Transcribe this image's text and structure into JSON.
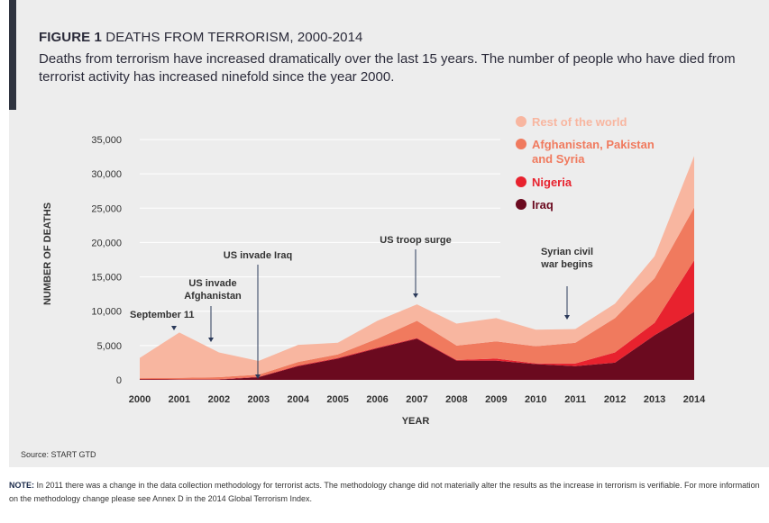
{
  "header": {
    "figure_label": "FIGURE 1",
    "figure_title": "DEATHS FROM TERRORISM, 2000-2014",
    "subtitle": "Deaths from terrorism have increased dramatically over the last 15 years. The number of people who have died from terrorist activity has increased ninefold since the year 2000."
  },
  "source": "Source: START GTD",
  "note": {
    "label": "NOTE:",
    "text": "In 2011 there was a change in the data collection methodology for terrorist acts. The methodology change did not materially alter the results as the increase in terrorism is verifiable. For more information on the methodology change please see Annex D in the 2014 Global Terrorism Index."
  },
  "chart_data": {
    "type": "area",
    "stacked": true,
    "xlabel": "YEAR",
    "ylabel": "NUMBER OF DEATHS",
    "x": [
      "2000",
      "2001",
      "2002",
      "2003",
      "2004",
      "2005",
      "2006",
      "2007",
      "2008",
      "2009",
      "2010",
      "2011",
      "2012",
      "2013",
      "2014"
    ],
    "ylim": [
      0,
      35000
    ],
    "yticks": [
      "0",
      "5,000",
      "10,000",
      "15,000",
      "20,000",
      "25,000",
      "30,000",
      "35,000"
    ],
    "grid": true,
    "legend_position": "top-right",
    "series": [
      {
        "name": "Iraq",
        "color": "#6b0a1f",
        "values": [
          100,
          50,
          50,
          400,
          2000,
          3100,
          4600,
          6000,
          2800,
          2800,
          2300,
          2000,
          2500,
          6500,
          9900
        ]
      },
      {
        "name": "Nigeria",
        "color": "#e8222e",
        "values": [
          50,
          50,
          50,
          50,
          100,
          100,
          100,
          100,
          100,
          300,
          100,
          400,
          1500,
          1800,
          7500
        ]
      },
      {
        "name": "Afghanistan, Pakistan and Syria",
        "color": "#f07a5e",
        "values": [
          150,
          200,
          300,
          300,
          500,
          500,
          1300,
          2500,
          2100,
          2500,
          2500,
          3000,
          5000,
          6500,
          7700
        ]
      },
      {
        "name": "Rest of the world",
        "color": "#f8b6a0",
        "values": [
          2900,
          6600,
          3600,
          2000,
          2500,
          1700,
          2600,
          2400,
          3200,
          3400,
          2400,
          2000,
          2100,
          3200,
          7500
        ]
      }
    ],
    "annotations": [
      {
        "year": 2001,
        "label": [
          "September 11"
        ]
      },
      {
        "year": 2002,
        "label": [
          "US invade",
          "Afghanistan"
        ]
      },
      {
        "year": 2003,
        "label": [
          "US invade Iraq"
        ]
      },
      {
        "year": 2007,
        "label": [
          "US troop surge"
        ]
      },
      {
        "year": 2011,
        "label": [
          "Syrian civil",
          "war begins"
        ]
      }
    ]
  }
}
